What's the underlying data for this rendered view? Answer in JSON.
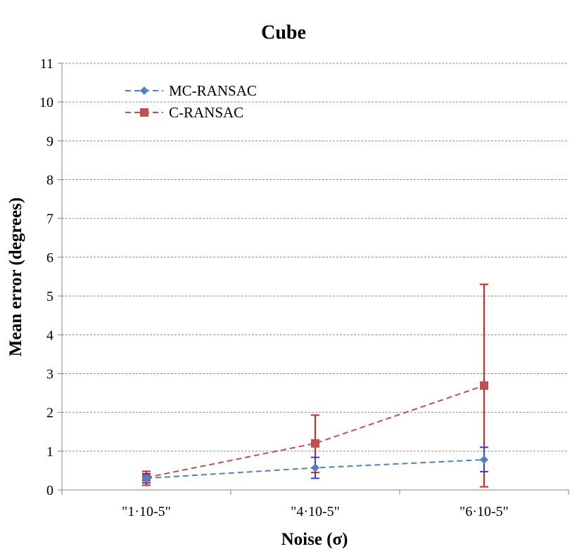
{
  "chart_data": {
    "type": "line",
    "title": "Cube",
    "xlabel": "Noise (σ)",
    "ylabel": "Mean error (degrees)",
    "categories": [
      "\"1·10-5\"",
      "\"4·10-5\"",
      "\"6·10-5\""
    ],
    "ylim": [
      0,
      11
    ],
    "yticks": [
      0,
      1,
      2,
      3,
      4,
      5,
      6,
      7,
      8,
      9,
      10,
      11
    ],
    "grid": true,
    "legend_position": "top-left",
    "series": [
      {
        "name": "MC-RANSAC",
        "color": "#4F81BD",
        "error_color": "#3A3AE0",
        "marker": "diamond",
        "values": [
          0.3,
          0.57,
          0.78
        ],
        "err_low": [
          0.18,
          0.3,
          0.47
        ],
        "err_high": [
          0.42,
          0.84,
          1.1
        ]
      },
      {
        "name": "C-RANSAC",
        "color": "#C0504D",
        "error_color": "#E02020",
        "marker": "square",
        "values": [
          0.32,
          1.2,
          2.69
        ],
        "err_low": [
          0.12,
          0.45,
          0.08
        ],
        "err_high": [
          0.48,
          1.93,
          5.3
        ]
      }
    ]
  }
}
